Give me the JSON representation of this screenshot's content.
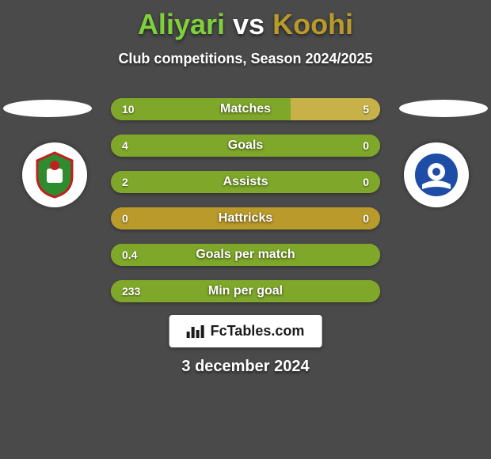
{
  "background_color": "#4a4a4a",
  "title": {
    "player1": "Aliyari",
    "vs": "vs",
    "player2": "Koohi",
    "player1_color": "#7fd13b",
    "player2_color": "#b99a2a"
  },
  "subtitle": "Club competitions, Season 2024/2025",
  "club_left": {
    "primary": "#2e8b2e",
    "accent": "#c02020"
  },
  "club_right": {
    "primary": "#1d4da6",
    "accent": "#ffffff"
  },
  "bars": {
    "track_color": "#b99a2a",
    "left_fill_color": "#7fa82a",
    "right_fill_color": "#c9b14a",
    "rows": [
      {
        "label": "Matches",
        "left_val": "10",
        "right_val": "5",
        "left_pct": 66.7,
        "right_pct": 33.3
      },
      {
        "label": "Goals",
        "left_val": "4",
        "right_val": "0",
        "left_pct": 100,
        "right_pct": 0
      },
      {
        "label": "Assists",
        "left_val": "2",
        "right_val": "0",
        "left_pct": 100,
        "right_pct": 0
      },
      {
        "label": "Hattricks",
        "left_val": "0",
        "right_val": "0",
        "left_pct": 0,
        "right_pct": 0
      },
      {
        "label": "Goals per match",
        "left_val": "0.4",
        "right_val": "",
        "left_pct": 100,
        "right_pct": 0
      },
      {
        "label": "Min per goal",
        "left_val": "233",
        "right_val": "",
        "left_pct": 100,
        "right_pct": 0
      }
    ]
  },
  "footer": {
    "brand": "FcTables.com"
  },
  "date": "3 december 2024"
}
